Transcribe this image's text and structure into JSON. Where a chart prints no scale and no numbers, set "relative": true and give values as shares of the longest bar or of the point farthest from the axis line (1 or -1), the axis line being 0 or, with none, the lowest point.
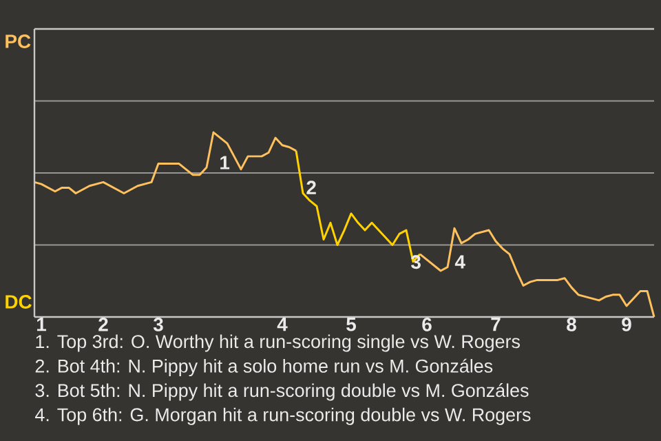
{
  "chart_data": {
    "type": "line",
    "relative": true,
    "categories": [
      null,
      "1",
      null,
      null,
      null,
      null,
      null,
      null,
      null,
      null,
      "2",
      null,
      null,
      null,
      null,
      null,
      null,
      null,
      "3",
      null,
      null,
      null,
      null,
      null,
      null,
      null,
      null,
      null,
      null,
      null,
      null,
      null,
      null,
      null,
      null,
      null,
      "4",
      null,
      null,
      null,
      null,
      null,
      null,
      null,
      null,
      null,
      "5",
      null,
      null,
      null,
      null,
      null,
      null,
      null,
      null,
      null,
      null,
      "6",
      null,
      null,
      null,
      null,
      null,
      null,
      null,
      null,
      null,
      "7",
      null,
      null,
      null,
      null,
      null,
      null,
      null,
      null,
      null,
      null,
      "8",
      null,
      null,
      null,
      null,
      null,
      null,
      null,
      "9",
      null,
      null,
      null,
      null
    ],
    "ref_lines": [
      {
        "axis": "y",
        "value": 0.39,
        "color": "#969696"
      },
      {
        "axis": "y",
        "value": 0.78,
        "color": "#969696"
      },
      {
        "axis": "y",
        "value": 1.17,
        "color": "#969696"
      }
    ],
    "marker": "none",
    "line_style": "solid",
    "series": [
      {
        "color": "#ffc15e",
        "values": [
          0.73,
          0.72,
          0.7,
          0.68,
          0.7,
          0.7,
          0.67,
          0.69,
          0.71,
          0.72,
          0.73,
          0.71,
          0.69,
          0.67,
          0.69,
          0.71,
          0.72,
          0.73,
          0.83,
          0.83,
          0.83,
          0.83,
          0.8,
          0.77,
          0.77,
          0.81,
          1,
          0.97,
          0.94,
          0.87,
          0.8,
          0.87,
          0.87,
          0.87,
          0.89,
          0.97,
          0.93,
          0.92,
          0.9,
          null,
          null,
          null,
          null,
          null,
          null,
          null,
          null,
          null,
          null,
          null,
          null,
          null,
          null,
          null,
          null,
          null,
          null,
          null,
          null,
          null,
          null,
          null,
          null,
          null,
          null,
          null,
          null,
          null,
          null,
          null,
          null,
          null,
          null,
          null,
          null,
          null,
          null,
          null,
          null,
          null,
          null,
          null,
          null,
          null,
          null,
          null,
          null,
          null,
          null,
          null,
          null
        ]
      },
      {
        "color": "#ffd200",
        "values": [
          null,
          null,
          null,
          null,
          null,
          null,
          null,
          null,
          null,
          null,
          null,
          null,
          null,
          null,
          null,
          null,
          null,
          null,
          null,
          null,
          null,
          null,
          null,
          null,
          null,
          null,
          null,
          null,
          null,
          null,
          null,
          null,
          null,
          null,
          null,
          null,
          null,
          null,
          0.9,
          0.67,
          0.63,
          0.6,
          0.42,
          0.51,
          0.39,
          0.47,
          0.56,
          0.51,
          0.47,
          0.51,
          0.47,
          0.43,
          0.39,
          0.45,
          0.47,
          0.3,
          0.34,
          null,
          null,
          null,
          null,
          null,
          null,
          null,
          null,
          null,
          null,
          null,
          null,
          null,
          null,
          null,
          null,
          null,
          null,
          null,
          null,
          null,
          null,
          null,
          null,
          null,
          null,
          null,
          null,
          null,
          null,
          null,
          null,
          null,
          null
        ]
      },
      {
        "color": "#ffc15e",
        "values": [
          null,
          null,
          null,
          null,
          null,
          null,
          null,
          null,
          null,
          null,
          null,
          null,
          null,
          null,
          null,
          null,
          null,
          null,
          null,
          null,
          null,
          null,
          null,
          null,
          null,
          null,
          null,
          null,
          null,
          null,
          null,
          null,
          null,
          null,
          null,
          null,
          null,
          null,
          null,
          null,
          null,
          null,
          null,
          null,
          null,
          null,
          null,
          null,
          null,
          null,
          null,
          null,
          null,
          null,
          null,
          null,
          0.34,
          0.31,
          0.28,
          0.25,
          0.27,
          0.48,
          0.4,
          0.42,
          0.45,
          0.46,
          0.47,
          0.41,
          0.37,
          0.34,
          0.25,
          0.17,
          0.19,
          0.2,
          0.2,
          0.2,
          0.2,
          0.21,
          0.16,
          0.12,
          0.11,
          0.1,
          0.09,
          0.11,
          0.12,
          0.12,
          0.06,
          0.1,
          0.14,
          0.14,
          0
        ]
      }
    ],
    "annotations": [
      "1",
      "2",
      "3",
      "4",
      "PC",
      "DC",
      "1. Top 3rd: O. Worthy hit a run-scoring single vs W. Rogers",
      "2. Bot 4th: N. Pippy hit a solo home run vs M. Gonzáles",
      "3. Bot 5th: N. Pippy hit a run-scoring double vs M. Gonzáles",
      "4. Top 6th: G. Morgan hit a run-scoring double vs W. Rogers"
    ]
  }
}
